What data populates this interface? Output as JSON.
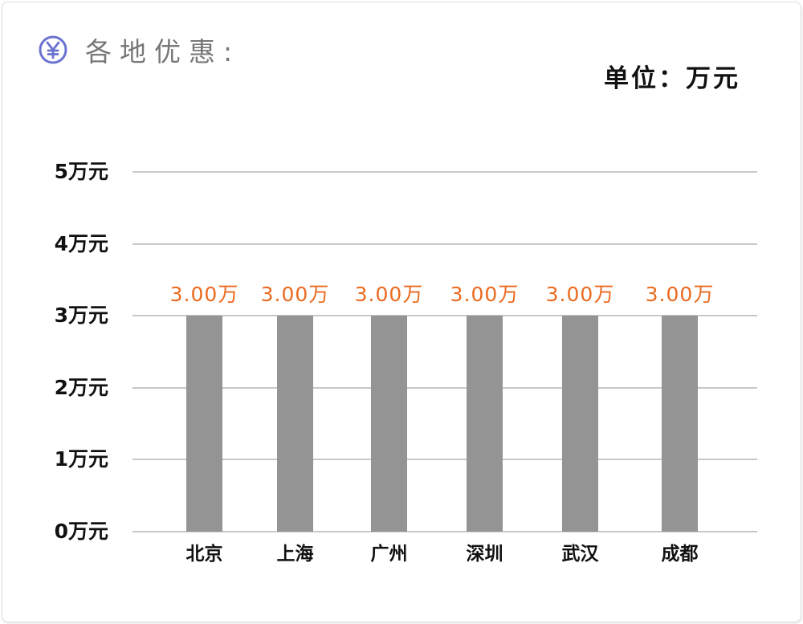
{
  "header": {
    "icon": "yen-circle-icon",
    "title": "各地优惠:",
    "icon_color": "#6A72D0"
  },
  "unit_label": "单位：万元",
  "colors": {
    "bar": "#949494",
    "bar_label": "#EB6A1F",
    "grid": "#C8C8C8",
    "title": "#777777"
  },
  "chart_data": {
    "type": "bar",
    "title": "各地优惠:",
    "unit": "单位：万元",
    "categories": [
      "北京",
      "上海",
      "广州",
      "深圳",
      "武汉",
      "成都"
    ],
    "values": [
      3.0,
      3.0,
      3.0,
      3.0,
      3.0,
      3.0
    ],
    "value_labels": [
      "3.00万",
      "3.00万",
      "3.00万",
      "3.00万",
      "3.00万",
      "3.00万"
    ],
    "yticks": [
      "0万元",
      "1万元",
      "2万元",
      "3万元",
      "4万元",
      "5万元"
    ],
    "ylim": [
      0,
      5
    ],
    "xlabel": "",
    "ylabel": "",
    "grid": true,
    "legend": null
  }
}
